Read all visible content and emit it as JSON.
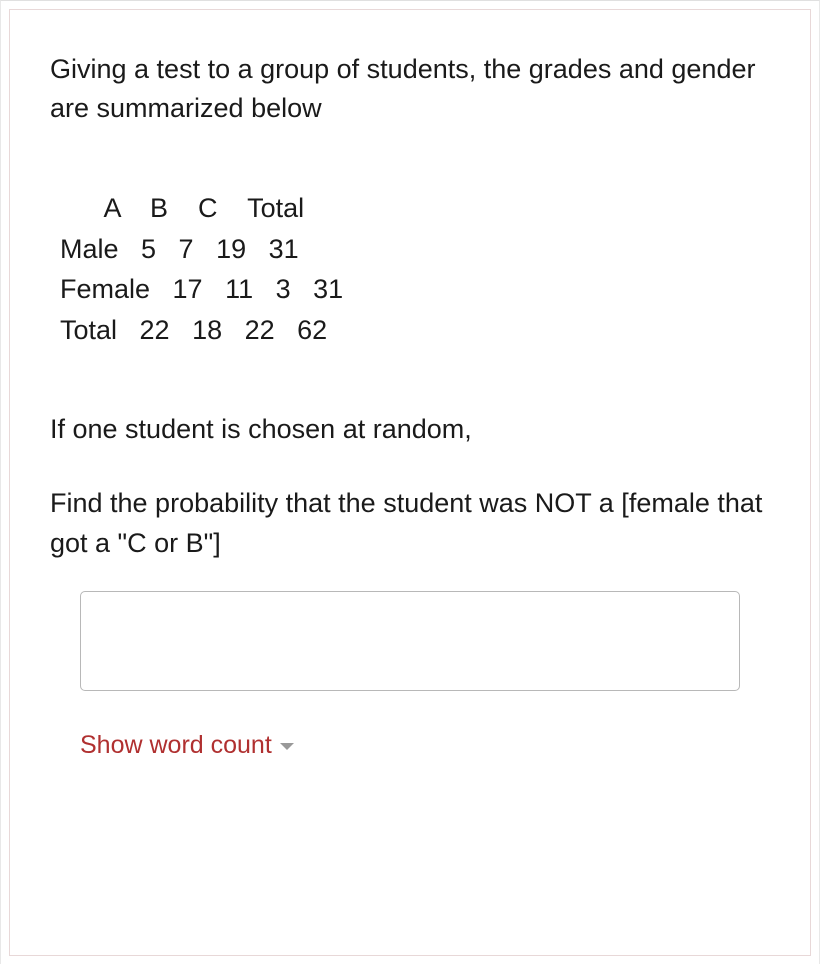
{
  "question": {
    "intro": "Giving a test to a group of students, the grades and gender are summarized below",
    "table": {
      "header_row": "      A    B    C    Total",
      "male_row": "Male   5   7   19   31",
      "female_row": "Female   17   11   3   31",
      "total_row": "Total   22   18   22   62",
      "columns": [
        "",
        "A",
        "B",
        "C",
        "Total"
      ],
      "rows": [
        {
          "label": "Male",
          "values": [
            5,
            7,
            19,
            31
          ]
        },
        {
          "label": "Female",
          "values": [
            17,
            11,
            3,
            31
          ]
        },
        {
          "label": "Total",
          "values": [
            22,
            18,
            22,
            62
          ]
        }
      ]
    },
    "prompt": "If one student is chosen at random,",
    "find": "Find the probability that the student was NOT a [female that got a \"C or B\"]"
  },
  "answer": {
    "value": "",
    "placeholder": ""
  },
  "controls": {
    "word_count_label": "Show word count"
  },
  "colors": {
    "text": "#1a1a1a",
    "accent": "#b03030",
    "border": "#e8d8d8",
    "input_border": "#b8b8b8",
    "background": "#ffffff"
  },
  "typography": {
    "body_fontsize": 27,
    "control_fontsize": 25,
    "font_family": "Arial, Helvetica, sans-serif"
  }
}
